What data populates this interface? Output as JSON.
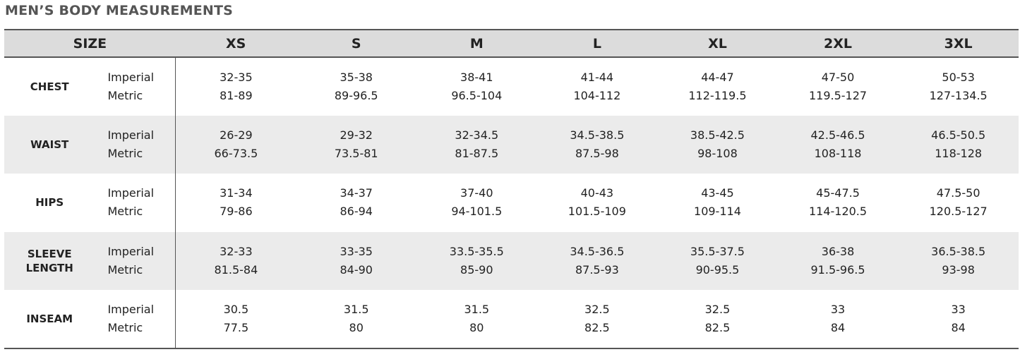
{
  "title": "MEN’S BODY MEASUREMENTS",
  "header": {
    "size_label": "SIZE",
    "sizes": [
      "XS",
      "S",
      "M",
      "L",
      "XL",
      "2XL",
      "3XL"
    ]
  },
  "unit_labels": {
    "imperial": "Imperial",
    "metric": "Metric"
  },
  "rows": [
    {
      "category": "CHEST",
      "imperial": [
        "32-35",
        "35-38",
        "38-41",
        "41-44",
        "44-47",
        "47-50",
        "50-53"
      ],
      "metric": [
        "81-89",
        "89-96.5",
        "96.5-104",
        "104-112",
        "112-119.5",
        "119.5-127",
        "127-134.5"
      ]
    },
    {
      "category": "WAIST",
      "imperial": [
        "26-29",
        "29-32",
        "32-34.5",
        "34.5-38.5",
        "38.5-42.5",
        "42.5-46.5",
        "46.5-50.5"
      ],
      "metric": [
        "66-73.5",
        "73.5-81",
        "81-87.5",
        "87.5-98",
        "98-108",
        "108-118",
        "118-128"
      ]
    },
    {
      "category": "HIPS",
      "imperial": [
        "31-34",
        "34-37",
        "37-40",
        "40-43",
        "43-45",
        "45-47.5",
        "47.5-50"
      ],
      "metric": [
        "79-86",
        "86-94",
        "94-101.5",
        "101.5-109",
        "109-114",
        "114-120.5",
        "120.5-127"
      ]
    },
    {
      "category": "SLEEVE LENGTH",
      "category_lines": [
        "SLEEVE",
        "LENGTH"
      ],
      "imperial": [
        "32-33",
        "33-35",
        "33.5-35.5",
        "34.5-36.5",
        "35.5-37.5",
        "36-38",
        "36.5-38.5"
      ],
      "metric": [
        "81.5-84",
        "84-90",
        "85-90",
        "87.5-93",
        "90-95.5",
        "91.5-96.5",
        "93-98"
      ]
    },
    {
      "category": "INSEAM",
      "imperial": [
        "30.5",
        "31.5",
        "31.5",
        "32.5",
        "32.5",
        "33",
        "33"
      ],
      "metric": [
        "77.5",
        "80",
        "80",
        "82.5",
        "82.5",
        "84",
        "84"
      ]
    }
  ]
}
